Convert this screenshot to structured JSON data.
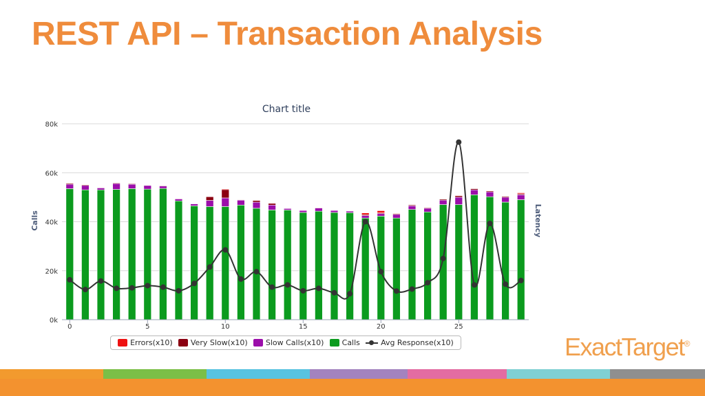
{
  "slide": {
    "title": "REST API – Transaction Analysis",
    "logo_text": "ExactTarget",
    "logo_mark": "®",
    "stripe_colors": [
      "#f29a2e",
      "#7bbf47",
      "#58c3e0",
      "#a383bf",
      "#e36ca2",
      "#7fd0d3",
      "#8f8f8f"
    ],
    "bottom_bar_color": "#f3922f",
    "title_color": "#ef8c3c"
  },
  "chart_data": {
    "type": "bar",
    "title": "Chart title",
    "ylabel": "Calls",
    "y2label": "Latency",
    "ylim": [
      0,
      80000
    ],
    "yticks": [
      "0k",
      "20k",
      "40k",
      "60k",
      "80k"
    ],
    "ytick_values": [
      0,
      20000,
      40000,
      60000,
      80000
    ],
    "xlim": [
      -0.5,
      29.5
    ],
    "xticks": [
      0,
      5,
      10,
      15,
      20,
      25
    ],
    "grid": true,
    "legend_position": "bottom",
    "stacked": true,
    "categories": [
      0,
      1,
      2,
      3,
      4,
      5,
      6,
      7,
      8,
      9,
      10,
      11,
      12,
      13,
      14,
      15,
      16,
      17,
      18,
      19,
      20,
      21,
      22,
      23,
      24,
      25,
      26,
      27,
      28,
      29
    ],
    "series": [
      {
        "name": "Calls",
        "color": "#0b9b1e",
        "values": [
          53500,
          53000,
          53000,
          53200,
          53500,
          53300,
          53600,
          48500,
          46500,
          46200,
          46200,
          46800,
          45500,
          44800,
          44800,
          43800,
          44300,
          43800,
          43700,
          41500,
          42300,
          41500,
          45000,
          44000,
          47000,
          47000,
          51000,
          50200,
          48000,
          49000
        ]
      },
      {
        "name": "Slow Calls(x10)",
        "color": "#9b0eaa",
        "values": [
          1800,
          1800,
          800,
          2400,
          1800,
          1500,
          1000,
          800,
          800,
          2500,
          3500,
          2000,
          2500,
          2000,
          600,
          800,
          1300,
          800,
          600,
          1000,
          1000,
          1500,
          1500,
          1500,
          1800,
          3000,
          2000,
          2000,
          2000,
          2000
        ]
      },
      {
        "name": "Very Slow(x10)",
        "color": "#8b0011",
        "values": [
          400,
          300,
          200,
          300,
          300,
          200,
          200,
          200,
          150,
          1500,
          3400,
          200,
          700,
          700,
          100,
          100,
          200,
          100,
          100,
          400,
          300,
          300,
          400,
          300,
          400,
          600,
          500,
          400,
          400,
          400
        ]
      },
      {
        "name": "Errors(x10)",
        "color": "#ee1111",
        "values": [
          100,
          100,
          100,
          100,
          100,
          100,
          100,
          100,
          100,
          100,
          300,
          100,
          100,
          100,
          100,
          100,
          100,
          100,
          100,
          700,
          900,
          200,
          100,
          100,
          100,
          200,
          100,
          100,
          100,
          400
        ]
      },
      {
        "name": "Avg Response(x10)",
        "type": "line",
        "color": "#333333",
        "values": [
          16300,
          12300,
          15800,
          12800,
          13000,
          13900,
          13300,
          11800,
          14800,
          21500,
          28500,
          16600,
          19600,
          13300,
          14200,
          11800,
          12800,
          11000,
          10600,
          40000,
          19600,
          11700,
          12500,
          15100,
          25000,
          72500,
          14200,
          39300,
          14500,
          16000
        ]
      }
    ]
  }
}
